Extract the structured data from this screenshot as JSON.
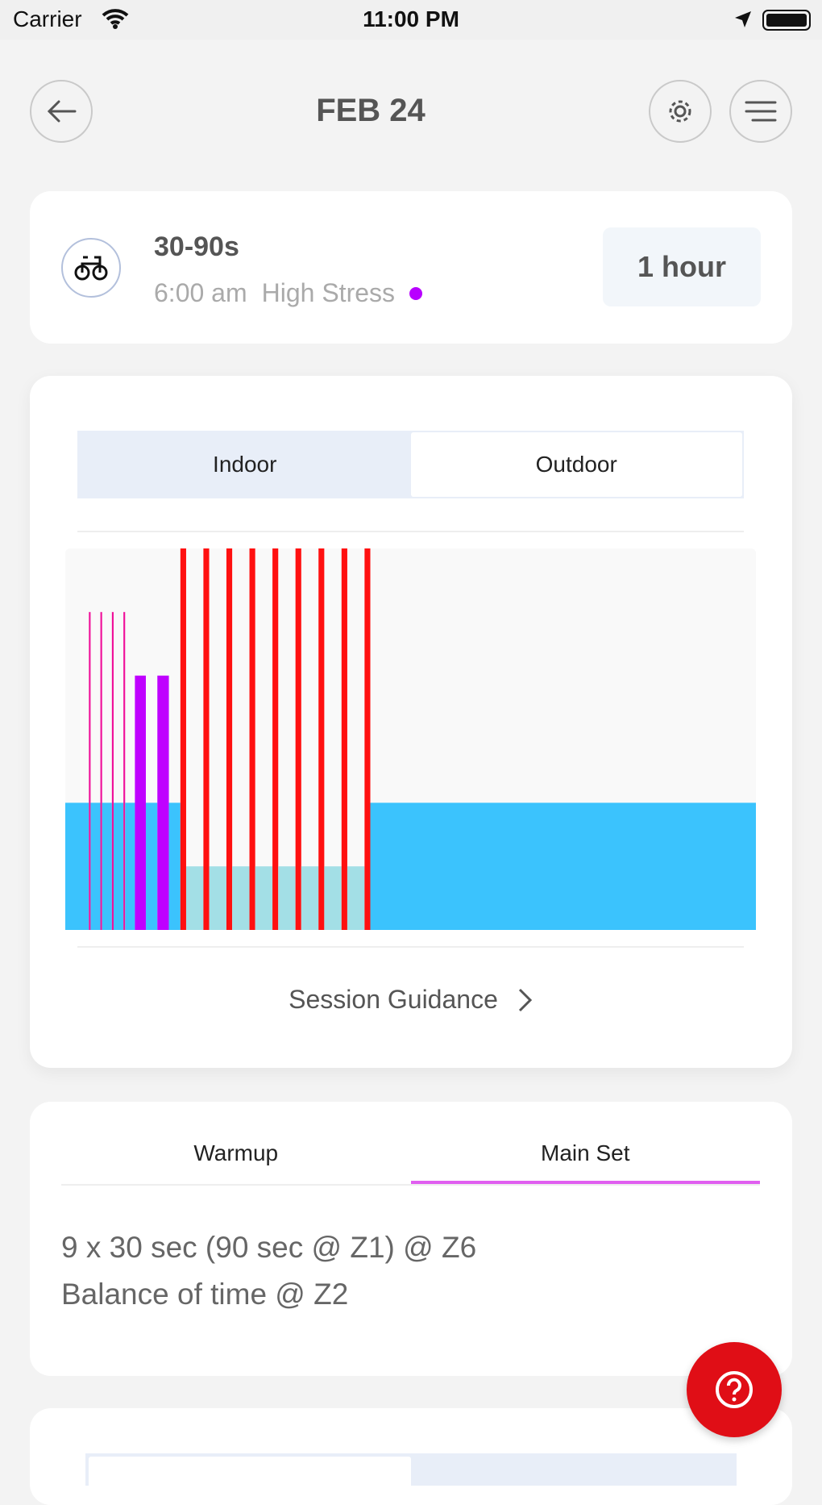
{
  "status_bar": {
    "carrier": "Carrier",
    "time": "11:00 PM"
  },
  "header": {
    "title": "FEB 24",
    "back_icon": "arrow-left-icon",
    "settings_icon": "gear-icon",
    "menu_icon": "menu-icon"
  },
  "workout": {
    "icon": "bike-icon",
    "title": "30-90s",
    "time": "6:00 am",
    "stress": "High Stress",
    "stress_color": "#b800ff",
    "duration": "1 hour"
  },
  "toggle": {
    "options": [
      "Indoor",
      "Outdoor"
    ],
    "selected": "Outdoor"
  },
  "session_guidance": "Session Guidance",
  "chart_data": {
    "type": "bar",
    "description_units": {
      "x": "minutes",
      "y": "zone"
    },
    "xlim": [
      0,
      60
    ],
    "ylim": [
      0,
      6
    ],
    "zone_colors": {
      "1": "#a3dfe6",
      "2": "#3bc3fd",
      "4": "#bf00ff",
      "5": "#f0109a",
      "6": "#ff1010"
    },
    "segments": [
      [
        0,
        2.05,
        2
      ],
      [
        2.05,
        2.2,
        5
      ],
      [
        2.2,
        3.05,
        2
      ],
      [
        3.05,
        3.2,
        5
      ],
      [
        3.2,
        4.05,
        2
      ],
      [
        4.05,
        4.2,
        5
      ],
      [
        4.2,
        5.05,
        2
      ],
      [
        5.05,
        5.2,
        5
      ],
      [
        5.2,
        6.05,
        2
      ],
      [
        6.05,
        7.0,
        4
      ],
      [
        7.0,
        8.0,
        2
      ],
      [
        8.0,
        9.0,
        4
      ],
      [
        9.0,
        10,
        2
      ],
      [
        10,
        10.5,
        6
      ],
      [
        10.5,
        12,
        1
      ],
      [
        12,
        12.5,
        6
      ],
      [
        12.5,
        14,
        1
      ],
      [
        14,
        14.5,
        6
      ],
      [
        14.5,
        16,
        1
      ],
      [
        16,
        16.5,
        6
      ],
      [
        16.5,
        18,
        1
      ],
      [
        18,
        18.5,
        6
      ],
      [
        18.5,
        20,
        1
      ],
      [
        20,
        20.5,
        6
      ],
      [
        20.5,
        22,
        1
      ],
      [
        22,
        22.5,
        6
      ],
      [
        22.5,
        24,
        1
      ],
      [
        24,
        24.5,
        6
      ],
      [
        24.5,
        26,
        1
      ],
      [
        26,
        26.5,
        6
      ],
      [
        26.5,
        60,
        2
      ]
    ]
  },
  "sets": {
    "tabs": [
      "Warmup",
      "Main Set"
    ],
    "active": "Main Set",
    "active_color": "#e05ff0",
    "lines": [
      "9 x 30 sec (90 sec @ Z1) @ Z6",
      "Balance of time @ Z2"
    ]
  },
  "help_button": {
    "icon": "help-icon",
    "color": "#e00e16"
  }
}
